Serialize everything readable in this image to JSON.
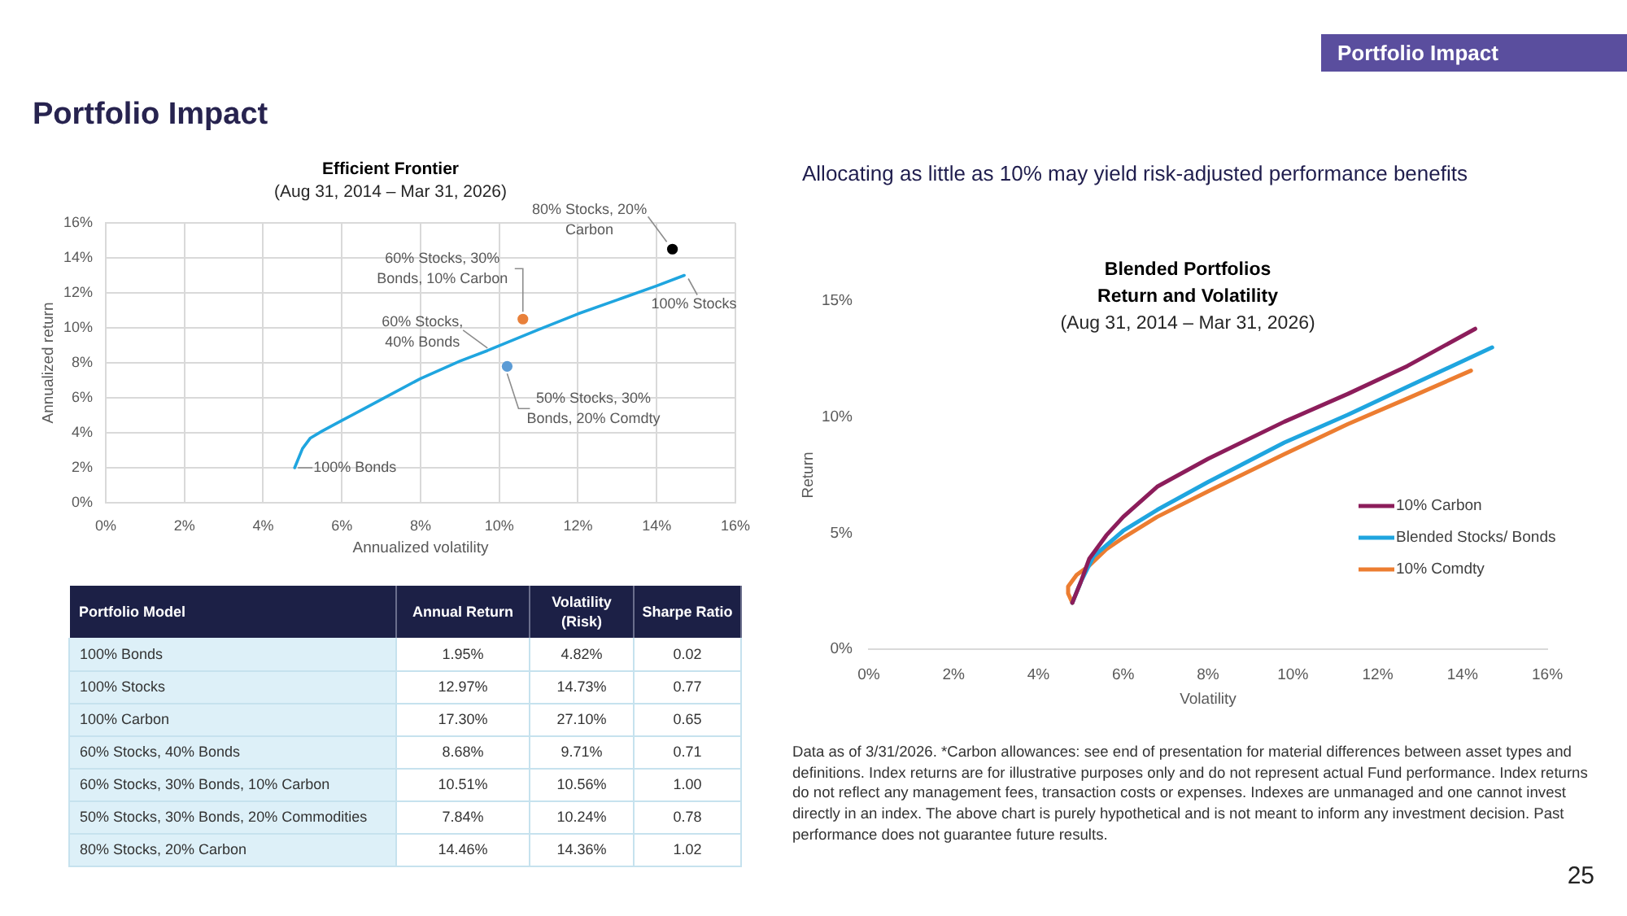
{
  "chart_data": [
    {
      "type": "other",
      "title": "Portfolio Impact",
      "annotations": [
        "Portfolio Impact",
        "25"
      ]
    },
    {
      "type": "line",
      "title": "Efficient Frontier",
      "subtitle": "(Aug 31, 2014 – Mar 31, 2026)",
      "xlabel": "Annualized volatility",
      "ylabel": "Annualized return",
      "xlim": [
        0,
        16
      ],
      "xticks": [
        {
          "value": 0,
          "label": "0%"
        },
        {
          "value": 2,
          "label": "2%"
        },
        {
          "value": 4,
          "label": "4%"
        },
        {
          "value": 6,
          "label": "6%"
        },
        {
          "value": 8,
          "label": "8%"
        },
        {
          "value": 10,
          "label": "10%"
        },
        {
          "value": 12,
          "label": "12%"
        },
        {
          "value": 14,
          "label": "14%"
        },
        {
          "value": 16,
          "label": "16%"
        }
      ],
      "ylim": [
        0,
        16
      ],
      "yticks": [
        {
          "value": 0,
          "label": "0%"
        },
        {
          "value": 2,
          "label": "2%"
        },
        {
          "value": 4,
          "label": "4%"
        },
        {
          "value": 6,
          "label": "6%"
        },
        {
          "value": 8,
          "label": "8%"
        },
        {
          "value": 10,
          "label": "10%"
        },
        {
          "value": 12,
          "label": "12%"
        },
        {
          "value": 14,
          "label": "14%"
        },
        {
          "value": 16,
          "label": "16%"
        }
      ],
      "grid": true,
      "series": [
        {
          "type": "line",
          "color": "#1fa5df",
          "marker": "none",
          "line_style": "solid",
          "x": [
            4.8,
            5.0,
            5.2,
            5.5,
            6.0,
            7.0,
            8.0,
            9.0,
            9.7,
            11.0,
            12.0,
            13.0,
            14.0,
            14.7
          ],
          "values": [
            2.0,
            3.1,
            3.7,
            4.1,
            4.7,
            5.9,
            7.1,
            8.1,
            8.7,
            9.9,
            10.8,
            11.6,
            12.4,
            13.0
          ]
        },
        {
          "type": "scatter",
          "marker": "circle",
          "x": [
            14.4,
            10.6,
            10.2
          ],
          "values": [
            14.5,
            10.5,
            7.8
          ],
          "colors": [
            "#000000",
            "#e8803a",
            "#5b9bd5"
          ]
        }
      ],
      "annotations": [
        {
          "text": "80% Stocks, 20% Carbon",
          "x": 14.4,
          "y": 14.5
        },
        {
          "text": "60% Stocks, 30% Bonds, 10% Carbon",
          "x": 10.6,
          "y": 10.5
        },
        {
          "text": "100% Stocks",
          "x": 14.7,
          "y": 13.0
        },
        {
          "text": "60% Stocks, 40% Bonds",
          "x": 9.7,
          "y": 8.7
        },
        {
          "text": "50% Stocks, 30% Bonds, 20% Comdty",
          "x": 10.2,
          "y": 7.8
        },
        {
          "text": "100% Bonds",
          "x": 4.8,
          "y": 2.0
        }
      ]
    },
    {
      "type": "line",
      "title": "Blended Portfolios Return and Volatility",
      "subtitle": "(Aug 31, 2014 – Mar 31, 2026)",
      "xlabel": "Volatility",
      "ylabel": "Return",
      "xlim": [
        0,
        16
      ],
      "xticks": [
        {
          "value": 0,
          "label": "0%"
        },
        {
          "value": 2,
          "label": "2%"
        },
        {
          "value": 4,
          "label": "4%"
        },
        {
          "value": 6,
          "label": "6%"
        },
        {
          "value": 8,
          "label": "8%"
        },
        {
          "value": 10,
          "label": "10%"
        },
        {
          "value": 12,
          "label": "12%"
        },
        {
          "value": 14,
          "label": "14%"
        },
        {
          "value": 16,
          "label": "16%"
        }
      ],
      "ylim": [
        0,
        15
      ],
      "yticks": [
        {
          "value": 0,
          "label": "0%"
        },
        {
          "value": 5,
          "label": "5%"
        },
        {
          "value": 10,
          "label": "10%"
        },
        {
          "value": 15,
          "label": "15%"
        }
      ],
      "legend": "right",
      "marker": "none",
      "line_style": "solid",
      "series": [
        {
          "name": "10% Carbon",
          "color": "#8c1d5b",
          "x": [
            4.8,
            5.0,
            5.2,
            5.6,
            6.0,
            6.8,
            8.0,
            9.8,
            11.3,
            12.7,
            14.3
          ],
          "values": [
            2.0,
            2.9,
            3.9,
            4.9,
            5.7,
            7.0,
            8.2,
            9.8,
            11.0,
            12.2,
            13.8
          ]
        },
        {
          "name": "Blended Stocks/ Bonds",
          "color": "#1fa5df",
          "x": [
            4.8,
            5.0,
            5.3,
            6.0,
            6.8,
            8.0,
            9.8,
            11.3,
            12.7,
            14.7
          ],
          "values": [
            2.0,
            2.9,
            4.0,
            5.1,
            6.0,
            7.2,
            8.9,
            10.1,
            11.3,
            13.0
          ]
        },
        {
          "name": "10% Comdty",
          "color": "#ec7d31",
          "x": [
            4.8,
            4.7,
            4.7,
            4.9,
            5.2,
            5.6,
            6.0,
            6.8,
            8.0,
            9.8,
            11.3,
            12.7,
            14.2
          ],
          "values": [
            2.0,
            2.4,
            2.7,
            3.2,
            3.6,
            4.3,
            4.8,
            5.7,
            6.8,
            8.4,
            9.7,
            10.8,
            12.0
          ]
        }
      ],
      "annotations": [
        "Allocating as little as 10% may yield risk-adjusted performance benefits",
        "Data as of 3/31/2026. *Carbon allowances: see end of presentation for material differences between asset types and definitions. Index returns are for illustrative purposes only and do not represent actual Fund performance. Index returns do not reflect any management fees, transaction costs or expenses. Indexes are unmanaged and one cannot invest directly in an index. The above chart is purely hypothetical and is not meant to inform any investment decision. Past performance does not guarantee future results."
      ]
    },
    {
      "type": "other",
      "xlabel": "Portfolio Model",
      "categories": [
        "100% Bonds",
        "100% Stocks",
        "100% Carbon",
        "60% Stocks, 40% Bonds",
        "60% Stocks, 30% Bonds, 10% Carbon",
        "50% Stocks, 30% Bonds, 20% Commodities",
        "80% Stocks, 20% Carbon"
      ],
      "series": [
        {
          "name": "Annual Return",
          "values": [
            1.95,
            12.97,
            17.3,
            8.68,
            10.51,
            7.84,
            14.46
          ],
          "value_labels": [
            "1.95%",
            "12.97%",
            "17.30%",
            "8.68%",
            "10.51%",
            "7.84%",
            "14.46%"
          ]
        },
        {
          "name": "Volatility (Risk)",
          "values": [
            4.82,
            14.73,
            27.1,
            9.71,
            10.56,
            10.24,
            14.36
          ],
          "value_labels": [
            "4.82%",
            "14.73%",
            "27.10%",
            "9.71%",
            "10.56%",
            "10.24%",
            "14.36%"
          ]
        },
        {
          "name": "Sharpe Ratio",
          "values": [
            0.02,
            0.77,
            0.65,
            0.71,
            1.0,
            0.78,
            1.02
          ],
          "value_labels": [
            "0.02",
            "0.77",
            "0.65",
            "0.71",
            "1.00",
            "0.78",
            "1.02"
          ]
        }
      ]
    }
  ]
}
